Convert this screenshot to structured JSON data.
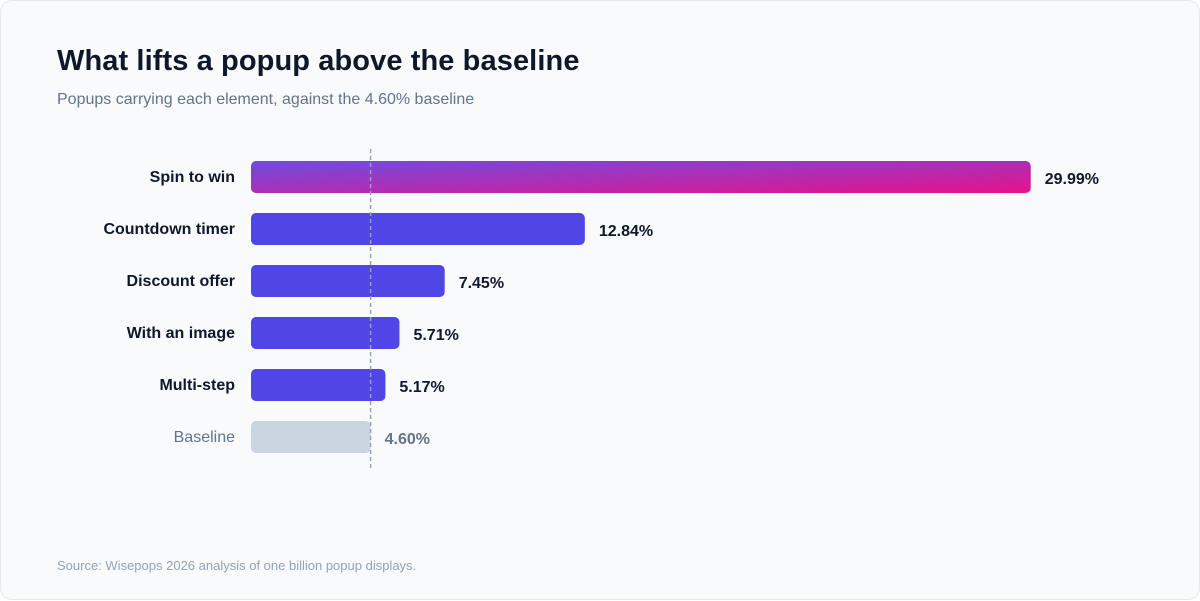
{
  "header": {
    "title": "What lifts a popup above the baseline",
    "subtitle": "Popups carrying each element, against the 4.60% baseline"
  },
  "footer": {
    "source": "Source: Wisepops 2026 analysis of one billion popup displays."
  },
  "colors": {
    "bar": "#4f46e5",
    "gradient_start": "#6d4de0",
    "gradient_end": "#e8128c",
    "baseline_bar": "#cbd5e1",
    "label": "#0f172a",
    "baseline_label": "#64748b",
    "baseline_value": "#64748b",
    "reference_line": "#94a3b8"
  },
  "chart_data": {
    "type": "bar",
    "orientation": "horizontal",
    "title": "What lifts a popup above the baseline",
    "subtitle": "Popups carrying each element, against the 4.60% baseline",
    "categories": [
      "Spin to win",
      "Countdown timer",
      "Discount offer",
      "With an image",
      "Multi-step",
      "Baseline"
    ],
    "values": [
      29.99,
      12.84,
      7.45,
      5.71,
      5.17,
      4.6
    ],
    "value_labels": [
      "29.99%",
      "12.84%",
      "7.45%",
      "5.71%",
      "5.17%",
      "4.60%"
    ],
    "baseline": 4.6,
    "xlim": [
      0,
      30
    ],
    "grid": false,
    "legend": "none",
    "reference_line": "dashed vertical line at baseline value",
    "highlight": "Spin to win (gradient fill)"
  }
}
